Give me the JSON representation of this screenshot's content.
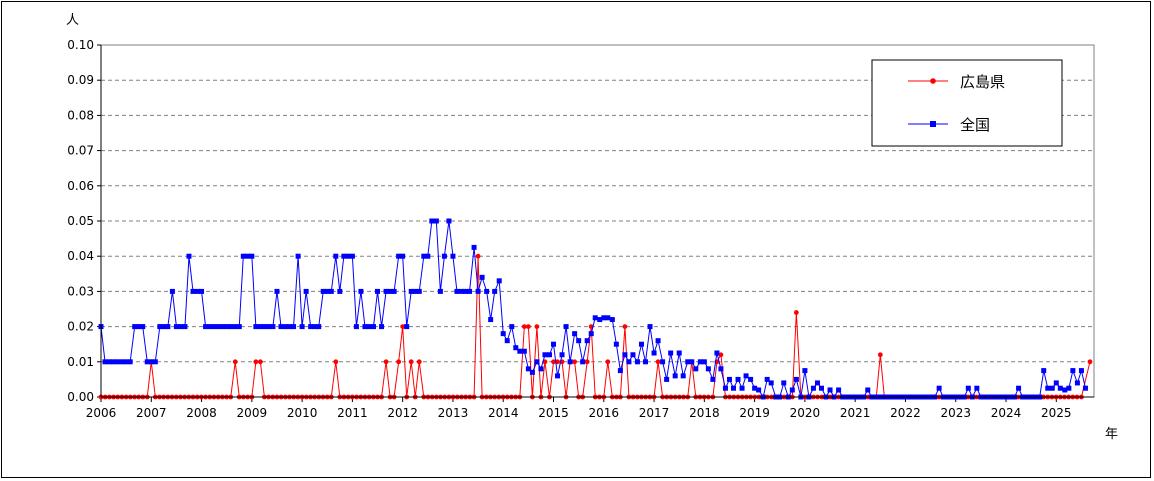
{
  "chart_data": {
    "type": "line",
    "ylabel": "人",
    "xlabel": "年",
    "ylim": [
      0,
      0.1
    ],
    "xlim": [
      2006,
      2025.75
    ],
    "y_ticks": [
      "0.00",
      "0.01",
      "0.02",
      "0.03",
      "0.04",
      "0.05",
      "0.06",
      "0.07",
      "0.08",
      "0.09",
      "0.10"
    ],
    "x_ticks": [
      "2006",
      "2007",
      "2008",
      "2009",
      "2010",
      "2011",
      "2012",
      "2013",
      "2014",
      "2015",
      "2016",
      "2017",
      "2018",
      "2019",
      "2020",
      "2021",
      "2022",
      "2023",
      "2024",
      "2025"
    ],
    "legend_position": "top-right",
    "grid": true,
    "series": [
      {
        "name": "広島県",
        "color": "#ff0000",
        "marker": "circle",
        "points": [
          [
            2006.0,
            0
          ],
          [
            2006.92,
            0
          ],
          [
            2007.0,
            0.01
          ],
          [
            2007.08,
            0
          ],
          [
            2008.58,
            0
          ],
          [
            2008.67,
            0.01
          ],
          [
            2008.75,
            0
          ],
          [
            2009.0,
            0
          ],
          [
            2009.08,
            0.01
          ],
          [
            2009.17,
            0.01
          ],
          [
            2009.25,
            0
          ],
          [
            2010.58,
            0
          ],
          [
            2010.67,
            0.01
          ],
          [
            2010.75,
            0
          ],
          [
            2011.58,
            0
          ],
          [
            2011.67,
            0.01
          ],
          [
            2011.75,
            0
          ],
          [
            2011.83,
            0
          ],
          [
            2011.92,
            0.01
          ],
          [
            2012.0,
            0.02
          ],
          [
            2012.08,
            0
          ],
          [
            2012.17,
            0.01
          ],
          [
            2012.25,
            0
          ],
          [
            2012.33,
            0.01
          ],
          [
            2012.42,
            0
          ],
          [
            2013.42,
            0
          ],
          [
            2013.5,
            0.04
          ],
          [
            2013.58,
            0
          ],
          [
            2014.33,
            0
          ],
          [
            2014.42,
            0.02
          ],
          [
            2014.5,
            0.02
          ],
          [
            2014.58,
            0
          ],
          [
            2014.67,
            0.02
          ],
          [
            2014.75,
            0
          ],
          [
            2014.83,
            0.01
          ],
          [
            2014.92,
            0
          ],
          [
            2015.0,
            0.01
          ],
          [
            2015.08,
            0.01
          ],
          [
            2015.17,
            0.01
          ],
          [
            2015.25,
            0
          ],
          [
            2015.33,
            0.01
          ],
          [
            2015.42,
            0.01
          ],
          [
            2015.5,
            0
          ],
          [
            2015.58,
            0
          ],
          [
            2015.67,
            0.01
          ],
          [
            2015.75,
            0.02
          ],
          [
            2015.83,
            0
          ],
          [
            2016.0,
            0
          ],
          [
            2016.08,
            0.01
          ],
          [
            2016.17,
            0
          ],
          [
            2016.33,
            0
          ],
          [
            2016.42,
            0.02
          ],
          [
            2016.5,
            0
          ],
          [
            2017.0,
            0
          ],
          [
            2017.08,
            0.01
          ],
          [
            2017.17,
            0
          ],
          [
            2017.67,
            0
          ],
          [
            2017.75,
            0.01
          ],
          [
            2017.83,
            0
          ],
          [
            2018.17,
            0
          ],
          [
            2018.25,
            0.01
          ],
          [
            2018.33,
            0.012
          ],
          [
            2018.42,
            0
          ],
          [
            2019.75,
            0
          ],
          [
            2019.83,
            0.024
          ],
          [
            2019.92,
            0
          ],
          [
            2021.42,
            0
          ],
          [
            2021.5,
            0.012
          ],
          [
            2021.58,
            0
          ],
          [
            2025.5,
            0
          ],
          [
            2025.67,
            0.01
          ]
        ]
      },
      {
        "name": "全国",
        "color": "#0000ff",
        "marker": "square",
        "points": [
          [
            2006.0,
            0.02
          ],
          [
            2006.08,
            0.01
          ],
          [
            2006.17,
            0.01
          ],
          [
            2006.25,
            0.01
          ],
          [
            2006.33,
            0.01
          ],
          [
            2006.42,
            0.01
          ],
          [
            2006.5,
            0.01
          ],
          [
            2006.58,
            0.01
          ],
          [
            2006.67,
            0.02
          ],
          [
            2006.75,
            0.02
          ],
          [
            2006.83,
            0.02
          ],
          [
            2006.92,
            0.01
          ],
          [
            2007.0,
            0.01
          ],
          [
            2007.08,
            0.01
          ],
          [
            2007.17,
            0.02
          ],
          [
            2007.25,
            0.02
          ],
          [
            2007.33,
            0.02
          ],
          [
            2007.42,
            0.03
          ],
          [
            2007.5,
            0.02
          ],
          [
            2007.58,
            0.02
          ],
          [
            2007.67,
            0.02
          ],
          [
            2007.75,
            0.04
          ],
          [
            2007.83,
            0.03
          ],
          [
            2007.92,
            0.03
          ],
          [
            2008.0,
            0.03
          ],
          [
            2008.08,
            0.02
          ],
          [
            2008.17,
            0.02
          ],
          [
            2008.25,
            0.02
          ],
          [
            2008.33,
            0.02
          ],
          [
            2008.42,
            0.02
          ],
          [
            2008.5,
            0.02
          ],
          [
            2008.58,
            0.02
          ],
          [
            2008.67,
            0.02
          ],
          [
            2008.75,
            0.02
          ],
          [
            2008.83,
            0.04
          ],
          [
            2008.92,
            0.04
          ],
          [
            2009.0,
            0.04
          ],
          [
            2009.08,
            0.02
          ],
          [
            2009.17,
            0.02
          ],
          [
            2009.25,
            0.02
          ],
          [
            2009.33,
            0.02
          ],
          [
            2009.42,
            0.02
          ],
          [
            2009.5,
            0.03
          ],
          [
            2009.58,
            0.02
          ],
          [
            2009.67,
            0.02
          ],
          [
            2009.75,
            0.02
          ],
          [
            2009.83,
            0.02
          ],
          [
            2009.92,
            0.04
          ],
          [
            2010.0,
            0.02
          ],
          [
            2010.08,
            0.03
          ],
          [
            2010.17,
            0.02
          ],
          [
            2010.25,
            0.02
          ],
          [
            2010.33,
            0.02
          ],
          [
            2010.42,
            0.03
          ],
          [
            2010.5,
            0.03
          ],
          [
            2010.58,
            0.03
          ],
          [
            2010.67,
            0.04
          ],
          [
            2010.75,
            0.03
          ],
          [
            2010.83,
            0.04
          ],
          [
            2010.92,
            0.04
          ],
          [
            2011.0,
            0.04
          ],
          [
            2011.08,
            0.02
          ],
          [
            2011.17,
            0.03
          ],
          [
            2011.25,
            0.02
          ],
          [
            2011.33,
            0.02
          ],
          [
            2011.42,
            0.02
          ],
          [
            2011.5,
            0.03
          ],
          [
            2011.58,
            0.02
          ],
          [
            2011.67,
            0.03
          ],
          [
            2011.75,
            0.03
          ],
          [
            2011.83,
            0.03
          ],
          [
            2011.92,
            0.04
          ],
          [
            2012.0,
            0.04
          ],
          [
            2012.08,
            0.02
          ],
          [
            2012.17,
            0.03
          ],
          [
            2012.25,
            0.03
          ],
          [
            2012.33,
            0.03
          ],
          [
            2012.42,
            0.04
          ],
          [
            2012.5,
            0.04
          ],
          [
            2012.58,
            0.05
          ],
          [
            2012.67,
            0.05
          ],
          [
            2012.75,
            0.03
          ],
          [
            2012.83,
            0.04
          ],
          [
            2012.92,
            0.05
          ],
          [
            2013.0,
            0.04
          ],
          [
            2013.08,
            0.03
          ],
          [
            2013.17,
            0.03
          ],
          [
            2013.25,
            0.03
          ],
          [
            2013.33,
            0.03
          ],
          [
            2013.42,
            0.0425
          ],
          [
            2013.5,
            0.03
          ],
          [
            2013.58,
            0.034
          ],
          [
            2013.67,
            0.03
          ],
          [
            2013.75,
            0.022
          ],
          [
            2013.83,
            0.03
          ],
          [
            2013.92,
            0.033
          ],
          [
            2014.0,
            0.018
          ],
          [
            2014.08,
            0.016
          ],
          [
            2014.17,
            0.02
          ],
          [
            2014.25,
            0.014
          ],
          [
            2014.33,
            0.013
          ],
          [
            2014.42,
            0.013
          ],
          [
            2014.5,
            0.008
          ],
          [
            2014.58,
            0.007
          ],
          [
            2014.67,
            0.01
          ],
          [
            2014.75,
            0.008
          ],
          [
            2014.83,
            0.012
          ],
          [
            2014.92,
            0.012
          ],
          [
            2015.0,
            0.015
          ],
          [
            2015.08,
            0.006
          ],
          [
            2015.17,
            0.012
          ],
          [
            2015.25,
            0.02
          ],
          [
            2015.33,
            0.01
          ],
          [
            2015.42,
            0.018
          ],
          [
            2015.5,
            0.016
          ],
          [
            2015.58,
            0.01
          ],
          [
            2015.67,
            0.016
          ],
          [
            2015.75,
            0.018
          ],
          [
            2015.83,
            0.0225
          ],
          [
            2015.92,
            0.022
          ],
          [
            2016.0,
            0.0225
          ],
          [
            2016.08,
            0.0225
          ],
          [
            2016.17,
            0.022
          ],
          [
            2016.25,
            0.015
          ],
          [
            2016.33,
            0.0075
          ],
          [
            2016.42,
            0.012
          ],
          [
            2016.5,
            0.01
          ],
          [
            2016.58,
            0.012
          ],
          [
            2016.67,
            0.01
          ],
          [
            2016.75,
            0.015
          ],
          [
            2016.83,
            0.01
          ],
          [
            2016.92,
            0.02
          ],
          [
            2017.0,
            0.0125
          ],
          [
            2017.08,
            0.016
          ],
          [
            2017.17,
            0.01
          ],
          [
            2017.25,
            0.005
          ],
          [
            2017.33,
            0.0125
          ],
          [
            2017.42,
            0.006
          ],
          [
            2017.5,
            0.0125
          ],
          [
            2017.58,
            0.006
          ],
          [
            2017.67,
            0.01
          ],
          [
            2017.75,
            0.01
          ],
          [
            2017.83,
            0.008
          ],
          [
            2017.92,
            0.01
          ],
          [
            2018.0,
            0.01
          ],
          [
            2018.08,
            0.008
          ],
          [
            2018.17,
            0.005
          ],
          [
            2018.25,
            0.0125
          ],
          [
            2018.33,
            0.008
          ],
          [
            2018.42,
            0.0025
          ],
          [
            2018.5,
            0.005
          ],
          [
            2018.58,
            0.0025
          ],
          [
            2018.67,
            0.005
          ],
          [
            2018.75,
            0.0025
          ],
          [
            2018.83,
            0.006
          ],
          [
            2018.92,
            0.005
          ],
          [
            2019.0,
            0.0025
          ],
          [
            2019.08,
            0.002
          ],
          [
            2019.17,
            0
          ],
          [
            2019.25,
            0.005
          ],
          [
            2019.33,
            0.004
          ],
          [
            2019.42,
            0
          ],
          [
            2019.5,
            0
          ],
          [
            2019.58,
            0.004
          ],
          [
            2019.67,
            0
          ],
          [
            2019.75,
            0.002
          ],
          [
            2019.83,
            0.005
          ],
          [
            2019.92,
            0
          ],
          [
            2020.0,
            0.0075
          ],
          [
            2020.08,
            0
          ],
          [
            2020.17,
            0.0025
          ],
          [
            2020.25,
            0.004
          ],
          [
            2020.33,
            0.0025
          ],
          [
            2020.42,
            0
          ],
          [
            2020.5,
            0.002
          ],
          [
            2020.58,
            0
          ],
          [
            2020.67,
            0.002
          ],
          [
            2020.75,
            0
          ],
          [
            2021.17,
            0
          ],
          [
            2021.25,
            0.002
          ],
          [
            2021.33,
            0
          ],
          [
            2022.58,
            0
          ],
          [
            2022.67,
            0.0025
          ],
          [
            2022.75,
            0
          ],
          [
            2023.17,
            0
          ],
          [
            2023.25,
            0.0025
          ],
          [
            2023.33,
            0
          ],
          [
            2023.42,
            0.0025
          ],
          [
            2023.5,
            0
          ],
          [
            2024.17,
            0
          ],
          [
            2024.25,
            0.0025
          ],
          [
            2024.33,
            0
          ],
          [
            2024.67,
            0
          ],
          [
            2024.75,
            0.0075
          ],
          [
            2024.83,
            0.0025
          ],
          [
            2024.92,
            0.0025
          ],
          [
            2025.0,
            0.004
          ],
          [
            2025.08,
            0.0025
          ],
          [
            2025.17,
            0.002
          ],
          [
            2025.25,
            0.0025
          ],
          [
            2025.33,
            0.0075
          ],
          [
            2025.42,
            0.004
          ],
          [
            2025.5,
            0.0075
          ],
          [
            2025.58,
            0.0025
          ]
        ]
      }
    ]
  }
}
